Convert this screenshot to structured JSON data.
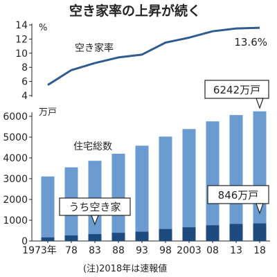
{
  "title": "空き家率の上昇が続く",
  "note": "(注)2018年は速報値",
  "colors": {
    "line": "#2f5b8f",
    "bar_total": "#6b9bd1",
    "bar_vacant": "#1e4b7f"
  },
  "chart_data": {
    "type": "bar",
    "categories": [
      "1973年",
      "78",
      "83",
      "88",
      "93",
      "98",
      "2003",
      "08",
      "13",
      "18"
    ],
    "rate_panel": {
      "type": "line",
      "unit": "%",
      "ylim": [
        4,
        14
      ],
      "yticks": [
        4,
        6,
        8,
        10,
        12,
        14
      ],
      "series_label": "空き家率",
      "values": [
        5.5,
        7.6,
        8.6,
        9.4,
        9.8,
        11.5,
        12.2,
        13.1,
        13.5,
        13.6
      ],
      "end_label": "13.6%"
    },
    "stock_panel": {
      "unit": "万戸",
      "ylim": [
        0,
        6000
      ],
      "yticks": [
        0,
        1000,
        2000,
        3000,
        4000,
        5000,
        6000
      ],
      "series": [
        {
          "name": "住宅総数",
          "values": [
            3106,
            3545,
            3861,
            4201,
            4588,
            5025,
            5389,
            5759,
            6063,
            6242
          ]
        },
        {
          "name": "うち空き家",
          "values": [
            172,
            268,
            330,
            394,
            448,
            576,
            659,
            757,
            820,
            846
          ]
        }
      ],
      "callouts": {
        "total": "6242万戸",
        "vacant": "846万戸"
      }
    }
  }
}
